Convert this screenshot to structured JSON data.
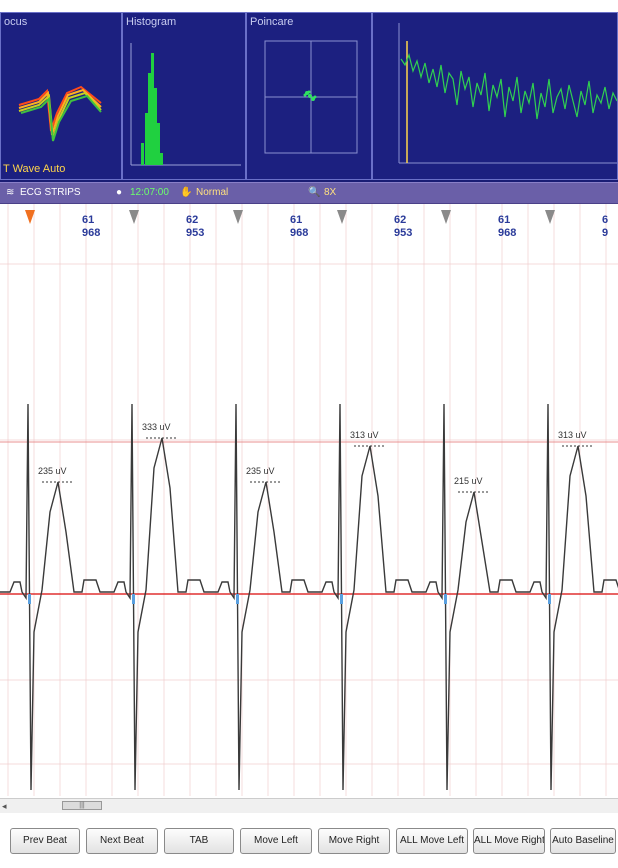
{
  "panels": {
    "focus": {
      "title": "ocus",
      "wave_label": "T Wave Auto"
    },
    "histogram": {
      "title": "Histogram"
    },
    "poincare": {
      "title": "Poincare"
    },
    "trend": {
      "title": ""
    }
  },
  "strip_header": {
    "title": "ECG STRIPS",
    "time": "12:07:00",
    "status": "Normal",
    "zoom": "8X"
  },
  "beats": [
    {
      "hr": "61",
      "rr": "968"
    },
    {
      "hr": "62",
      "rr": "953"
    },
    {
      "hr": "61",
      "rr": "968"
    },
    {
      "hr": "62",
      "rr": "953"
    },
    {
      "hr": "61",
      "rr": "968"
    },
    {
      "hr": "6",
      "rr": "9"
    }
  ],
  "t_wave_labels": [
    "235 uV",
    "333 uV",
    "235 uV",
    "313 uV",
    "215 uV",
    "313 uV"
  ],
  "buttons": [
    "Prev Beat",
    "Next Beat",
    "TAB",
    "Move Left",
    "Move Right",
    "ALL Move Left",
    "ALL Move Right",
    "Auto Baseline"
  ],
  "colors": {
    "panel_bg": "#1c2080",
    "header_bg": "#6a5fa8",
    "grid": "#e8a0a0",
    "baseline": "#e03030",
    "ecg": "#3a3a3a"
  }
}
